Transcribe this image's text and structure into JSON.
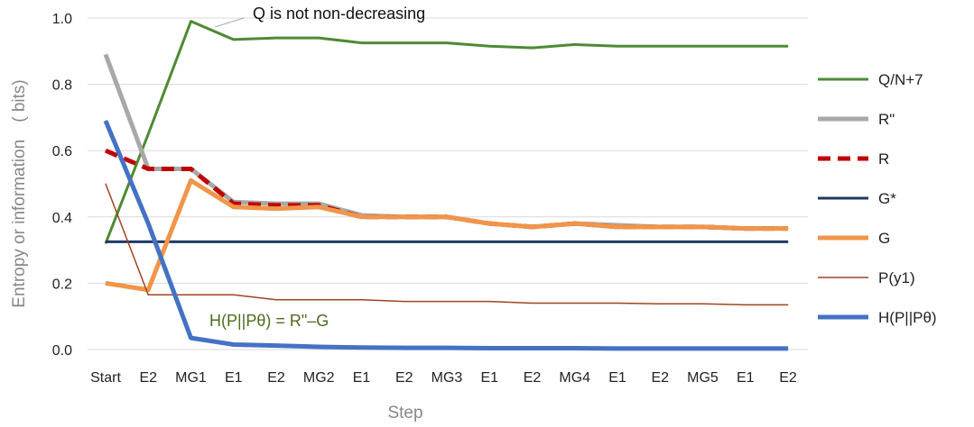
{
  "chart_data": {
    "type": "line",
    "xlabel": "Step",
    "ylabel": "Entropy or information　( bits)",
    "ylim": [
      0,
      1.0
    ],
    "yticks": [
      "0.0",
      "0.2",
      "0.4",
      "0.6",
      "0.8",
      "1.0"
    ],
    "categories": [
      "Start",
      "E2",
      "MG1",
      "E1",
      "E2",
      "MG2",
      "E1",
      "E2",
      "MG3",
      "E1",
      "E2",
      "MG4",
      "E1",
      "E2",
      "MG5",
      "E1",
      "E2"
    ],
    "grid": true,
    "legend_position": "right",
    "series": [
      {
        "name": "Q/N+7",
        "color": "#4e8a35",
        "style": "solid-medium",
        "values": [
          0.32,
          0.65,
          0.99,
          0.935,
          0.94,
          0.94,
          0.925,
          0.925,
          0.925,
          0.915,
          0.91,
          0.92,
          0.915,
          0.915,
          0.915,
          0.915,
          0.915
        ]
      },
      {
        "name": "R\"",
        "color": "#a8a8a8",
        "style": "solid-thick",
        "values": [
          0.89,
          0.545,
          0.545,
          0.445,
          0.44,
          0.44,
          0.405,
          0.4,
          0.4,
          0.38,
          0.37,
          0.38,
          0.375,
          0.37,
          0.37,
          0.365,
          0.365
        ]
      },
      {
        "name": "R",
        "color": "#c00000",
        "style": "dashed",
        "values": [
          0.6,
          0.545,
          0.545,
          0.44,
          0.435,
          0.435,
          0.4,
          0.4,
          0.4,
          0.38,
          0.37,
          0.38,
          0.37,
          0.37,
          0.37,
          0.365,
          0.365
        ]
      },
      {
        "name": "G*",
        "color": "#1f3864",
        "style": "solid-medium",
        "values": [
          0.325,
          0.325,
          0.325,
          0.325,
          0.325,
          0.325,
          0.325,
          0.325,
          0.325,
          0.325,
          0.325,
          0.325,
          0.325,
          0.325,
          0.325,
          0.325,
          0.325
        ]
      },
      {
        "name": "G",
        "color": "#f0954a",
        "style": "solid-thick",
        "values": [
          0.2,
          0.18,
          0.51,
          0.43,
          0.425,
          0.43,
          0.4,
          0.4,
          0.4,
          0.38,
          0.37,
          0.38,
          0.37,
          0.37,
          0.37,
          0.365,
          0.365
        ]
      },
      {
        "name": "P(y1)",
        "color": "#a0441f",
        "style": "solid-thin",
        "values": [
          0.5,
          0.165,
          0.165,
          0.165,
          0.15,
          0.15,
          0.15,
          0.145,
          0.145,
          0.145,
          0.14,
          0.14,
          0.14,
          0.138,
          0.138,
          0.135,
          0.135
        ]
      },
      {
        "name": "H(P||Pθ)",
        "color": "#4472c4",
        "style": "solid-thick",
        "values": [
          0.69,
          0.38,
          0.035,
          0.015,
          0.012,
          0.008,
          0.006,
          0.005,
          0.005,
          0.004,
          0.004,
          0.004,
          0.003,
          0.003,
          0.003,
          0.003,
          0.003
        ]
      }
    ],
    "annotations": [
      {
        "text": "Q is not non-decreasing",
        "color": "#111111"
      },
      {
        "text": "H(P||Pθ) = R\"–G",
        "color": "#4e6b1f"
      }
    ]
  }
}
